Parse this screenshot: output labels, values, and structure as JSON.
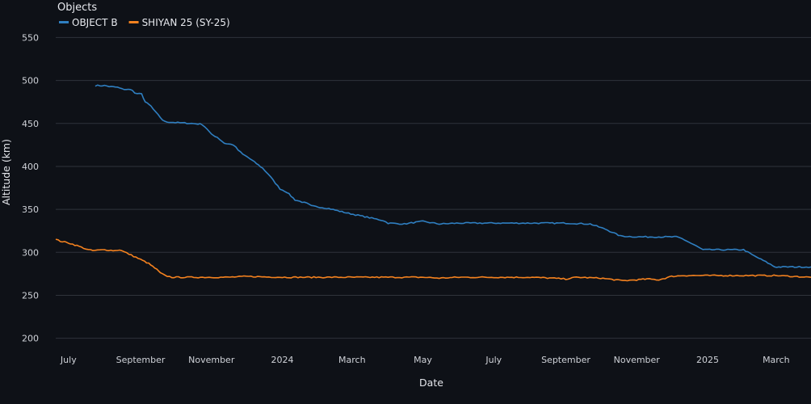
{
  "chart_data": {
    "type": "line",
    "xlabel": "Date",
    "ylabel": "Altitude (km)",
    "ylim": [
      195,
      556
    ],
    "xlim": [
      "2023-06-20",
      "2025-03-31"
    ],
    "y_ticks": [
      200,
      250,
      300,
      350,
      400,
      450,
      500,
      550
    ],
    "x_ticks": [
      {
        "date": "2023-07-01",
        "label": "July"
      },
      {
        "date": "2023-09-01",
        "label": "September"
      },
      {
        "date": "2023-11-01",
        "label": "November"
      },
      {
        "date": "2024-01-01",
        "label": "2024"
      },
      {
        "date": "2024-03-01",
        "label": "March"
      },
      {
        "date": "2024-05-01",
        "label": "May"
      },
      {
        "date": "2024-07-01",
        "label": "July"
      },
      {
        "date": "2024-09-01",
        "label": "September"
      },
      {
        "date": "2024-11-01",
        "label": "November"
      },
      {
        "date": "2025-01-01",
        "label": "2025"
      },
      {
        "date": "2025-03-01",
        "label": "March"
      }
    ],
    "grid": true,
    "legend": {
      "title": "Objects",
      "position": "top-left"
    },
    "series": [
      {
        "name": "OBJECT B",
        "color": "#2f7fc1",
        "points": [
          [
            "2023-07-24",
            494
          ],
          [
            "2023-08-01",
            494
          ],
          [
            "2023-08-05",
            493
          ],
          [
            "2023-08-12",
            492
          ],
          [
            "2023-08-16",
            490
          ],
          [
            "2023-08-25",
            489
          ],
          [
            "2023-08-27",
            485
          ],
          [
            "2023-09-02",
            484
          ],
          [
            "2023-09-05",
            475
          ],
          [
            "2023-09-10",
            470
          ],
          [
            "2023-09-14",
            463
          ],
          [
            "2023-09-20",
            454
          ],
          [
            "2023-09-22",
            452
          ],
          [
            "2023-10-01",
            451
          ],
          [
            "2023-10-15",
            450
          ],
          [
            "2023-10-24",
            449
          ],
          [
            "2023-10-28",
            444
          ],
          [
            "2023-11-01",
            437
          ],
          [
            "2023-11-06",
            434
          ],
          [
            "2023-11-12",
            427
          ],
          [
            "2023-11-20",
            425
          ],
          [
            "2023-11-24",
            419
          ],
          [
            "2023-11-28",
            414
          ],
          [
            "2023-12-02",
            411
          ],
          [
            "2023-12-08",
            405
          ],
          [
            "2023-12-15",
            398
          ],
          [
            "2023-12-20",
            391
          ],
          [
            "2023-12-24",
            384
          ],
          [
            "2023-12-30",
            374
          ],
          [
            "2024-01-05",
            370
          ],
          [
            "2024-01-12",
            361
          ],
          [
            "2024-01-22",
            357
          ],
          [
            "2024-01-26",
            354
          ],
          [
            "2024-02-10",
            351
          ],
          [
            "2024-02-25",
            346
          ],
          [
            "2024-03-10",
            342
          ],
          [
            "2024-03-28",
            337
          ],
          [
            "2024-04-01",
            334
          ],
          [
            "2024-04-15",
            333
          ],
          [
            "2024-04-25",
            335
          ],
          [
            "2024-05-01",
            336
          ],
          [
            "2024-05-15",
            333
          ],
          [
            "2024-06-01",
            334
          ],
          [
            "2024-07-01",
            334
          ],
          [
            "2024-08-01",
            334
          ],
          [
            "2024-09-01",
            334
          ],
          [
            "2024-09-22",
            333
          ],
          [
            "2024-10-05",
            327
          ],
          [
            "2024-10-18",
            319
          ],
          [
            "2024-11-01",
            318
          ],
          [
            "2024-11-20",
            318
          ],
          [
            "2024-12-05",
            318
          ],
          [
            "2024-12-10",
            316
          ],
          [
            "2024-12-20",
            309
          ],
          [
            "2024-12-28",
            303
          ],
          [
            "2025-02-01",
            303
          ],
          [
            "2025-02-10",
            296
          ],
          [
            "2025-02-20",
            289
          ],
          [
            "2025-02-28",
            283
          ],
          [
            "2025-03-05",
            283
          ],
          [
            "2025-03-31",
            283
          ]
        ]
      },
      {
        "name": "SHIYAN 25 (SY-25)",
        "color": "#f5821f",
        "points": [
          [
            "2023-06-20",
            315
          ],
          [
            "2023-06-24",
            313
          ],
          [
            "2023-07-01",
            311
          ],
          [
            "2023-07-10",
            307
          ],
          [
            "2023-07-18",
            303
          ],
          [
            "2023-07-22",
            302
          ],
          [
            "2023-08-01",
            303
          ],
          [
            "2023-08-10",
            302
          ],
          [
            "2023-08-14",
            303
          ],
          [
            "2023-08-22",
            298
          ],
          [
            "2023-08-30",
            293
          ],
          [
            "2023-09-08",
            287
          ],
          [
            "2023-09-15",
            280
          ],
          [
            "2023-09-18",
            276
          ],
          [
            "2023-09-22",
            273
          ],
          [
            "2023-09-28",
            271
          ],
          [
            "2023-10-15",
            271
          ],
          [
            "2023-11-01",
            271
          ],
          [
            "2023-11-15",
            271
          ],
          [
            "2023-12-01",
            272
          ],
          [
            "2024-01-01",
            271
          ],
          [
            "2024-02-01",
            271
          ],
          [
            "2024-03-01",
            271
          ],
          [
            "2024-04-01",
            271
          ],
          [
            "2024-05-01",
            271
          ],
          [
            "2024-05-15",
            270
          ],
          [
            "2024-06-01",
            271
          ],
          [
            "2024-07-01",
            271
          ],
          [
            "2024-08-01",
            271
          ],
          [
            "2024-08-20",
            270
          ],
          [
            "2024-09-01",
            269
          ],
          [
            "2024-09-10",
            271
          ],
          [
            "2024-10-01",
            270
          ],
          [
            "2024-10-20",
            267
          ],
          [
            "2024-11-01",
            268
          ],
          [
            "2024-11-10",
            269
          ],
          [
            "2024-11-20",
            268
          ],
          [
            "2024-12-01",
            272
          ],
          [
            "2024-12-10",
            273
          ],
          [
            "2025-01-01",
            273
          ],
          [
            "2025-02-01",
            273
          ],
          [
            "2025-03-01",
            273
          ],
          [
            "2025-03-31",
            271
          ]
        ]
      }
    ]
  }
}
